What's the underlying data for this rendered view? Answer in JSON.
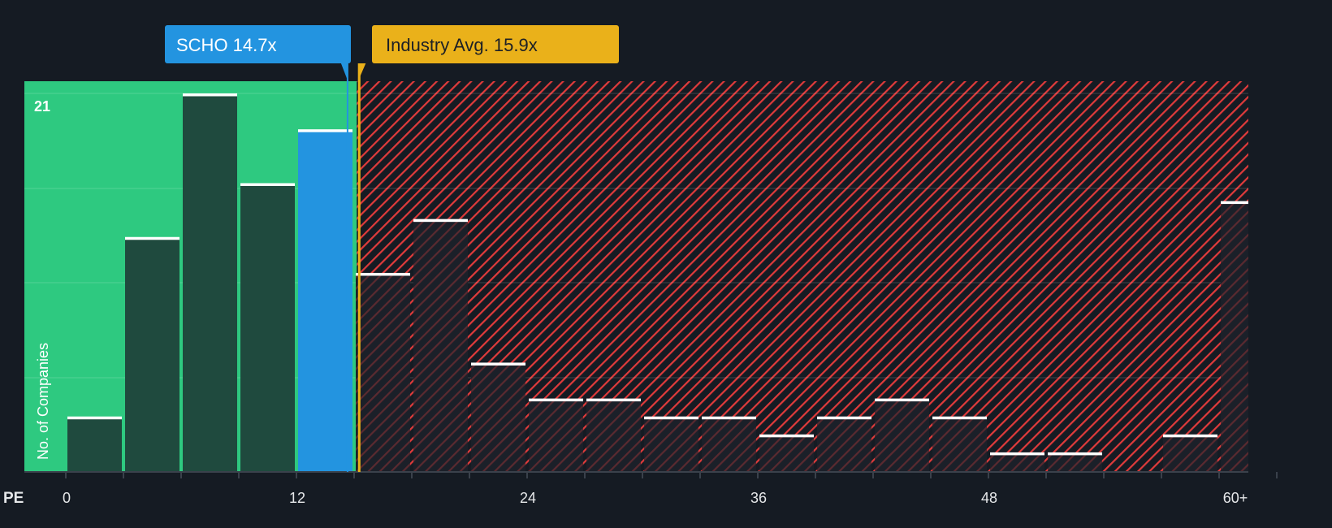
{
  "chart_data": {
    "type": "bar",
    "title": "",
    "xlabel": "PE",
    "ylabel": "No. of Companies",
    "bin_width": 3,
    "bins_start": [
      0,
      3,
      6,
      9,
      12,
      15,
      18,
      21,
      24,
      27,
      30,
      33,
      36,
      39,
      42,
      45,
      48,
      51,
      54,
      57,
      60
    ],
    "values": [
      3,
      13,
      21,
      16,
      19,
      11,
      14,
      6,
      4,
      4,
      3,
      3,
      2,
      3,
      4,
      3,
      1,
      1,
      0,
      2,
      15
    ],
    "x_ticks": [
      "0",
      "12",
      "24",
      "36",
      "48",
      "60+"
    ],
    "x_tick_values": [
      0,
      12,
      24,
      36,
      48,
      60
    ],
    "y_max_label": "21",
    "ylim": [
      0,
      21
    ],
    "company": {
      "label": "SCHO 14.7x",
      "value": 14.7,
      "color": "#2394e0"
    },
    "industry": {
      "label": "Industry Avg. 15.9x",
      "value": 15.9,
      "color": "#eab11a"
    },
    "colors": {
      "good_zone": "#2ec980",
      "bad_hatch": "#e03b3b",
      "bar": "#1f4a3e",
      "background": "#151b23"
    }
  }
}
